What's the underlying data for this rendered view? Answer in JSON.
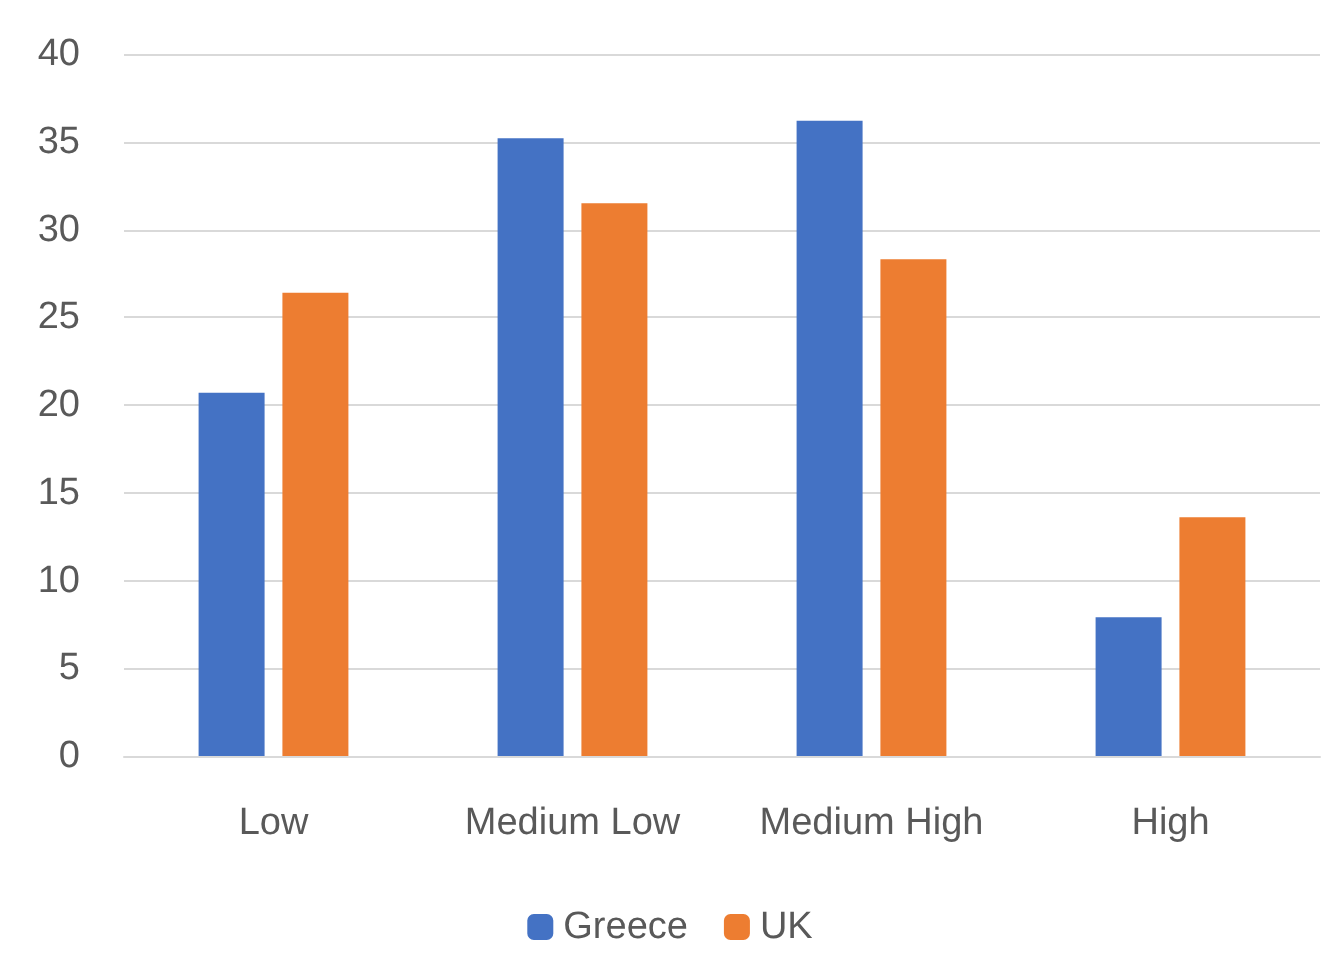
{
  "chart_data": {
    "type": "bar",
    "categories": [
      "Low",
      "Medium Low",
      "Medium High",
      "High"
    ],
    "series": [
      {
        "name": "Greece",
        "color": "#4472c4",
        "values": [
          20.7,
          35.2,
          36.2,
          7.9
        ]
      },
      {
        "name": "UK",
        "color": "#ed7d31",
        "values": [
          26.4,
          31.5,
          28.3,
          13.6
        ]
      }
    ],
    "ylim": [
      0,
      40
    ],
    "yticks": [
      0,
      5,
      10,
      15,
      20,
      25,
      30,
      35,
      40
    ],
    "grid": "y",
    "legend": "bottom"
  }
}
